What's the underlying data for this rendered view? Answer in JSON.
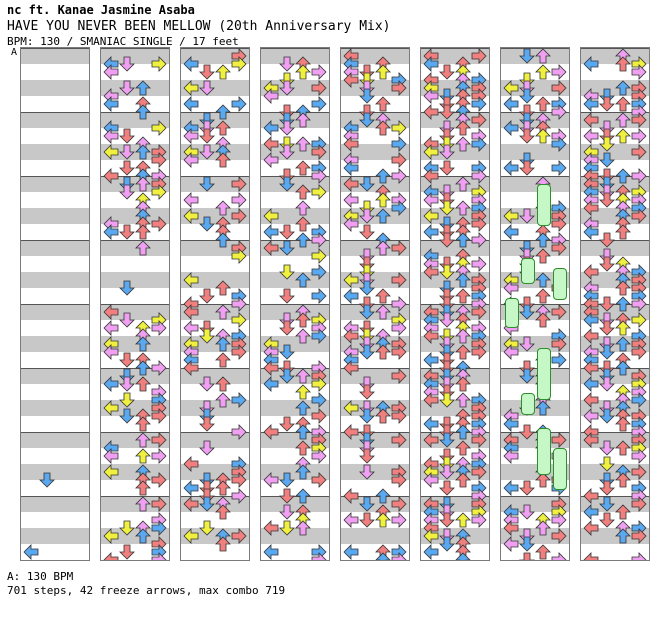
{
  "header": {
    "artist": "nc ft. Kanae Jasmine Asaba",
    "title": "HAVE YOU NEVER BEEN MELLOW (20th Anniversary Mix)",
    "meta": "BPM: 130 / SMANIAC SINGLE / 17 feet"
  },
  "chart": {
    "bpm_marker": "A",
    "columns": 8,
    "lanes": [
      "left",
      "down",
      "up",
      "right"
    ],
    "colors": {
      "red": "#f08080",
      "blue": "#5aa8f0",
      "pink": "#f0a0f0",
      "yellow": "#f0f040",
      "green": "#40e040",
      "freeze": "#c6f7c6"
    }
  },
  "footer": {
    "bpm_label": "A: 130 BPM",
    "stats": "701 steps, 42 freeze arrows, max combo 719"
  }
}
